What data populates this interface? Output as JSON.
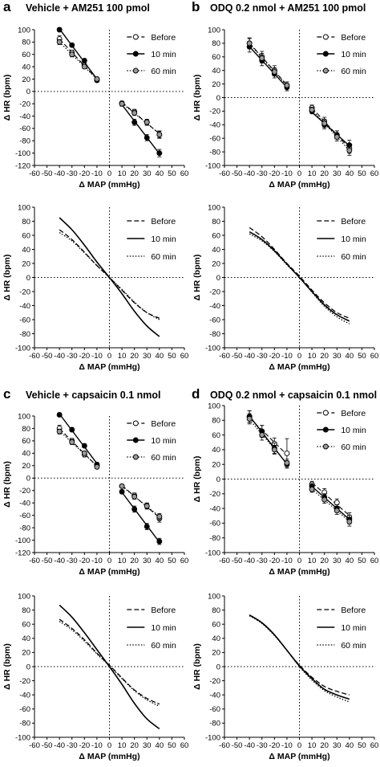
{
  "chart_data": [
    {
      "id": "a-top",
      "panel": "a",
      "title": "Vehicle + AM251 100 pmol",
      "type": "scatter",
      "xlabel": "Δ MAP (mmHg)",
      "ylabel": "Δ HR (bpm)",
      "xlim": [
        -60,
        60
      ],
      "ylim": [
        -120,
        100
      ],
      "xticks": [
        -60,
        -50,
        -40,
        -30,
        -20,
        -10,
        0,
        10,
        20,
        30,
        40,
        50,
        60
      ],
      "yticks": [
        -120,
        -100,
        -80,
        -60,
        -40,
        -20,
        0,
        20,
        40,
        60,
        80,
        100
      ],
      "legend": "top-right",
      "series": [
        {
          "name": "Before",
          "marker": "open",
          "line": "dash",
          "x": [
            -40,
            -30,
            -20,
            -10,
            10,
            20,
            30,
            40
          ],
          "y": [
            85,
            63,
            42,
            20,
            -19,
            -33,
            -50,
            -70
          ],
          "err": [
            5,
            4,
            4,
            3,
            3,
            4,
            5,
            5
          ]
        },
        {
          "name": "10 min",
          "marker": "filled",
          "line": "solid",
          "x": [
            -40,
            -30,
            -20,
            -10,
            10,
            20,
            30,
            40
          ],
          "y": [
            100,
            75,
            50,
            18,
            -20,
            -50,
            -75,
            -100
          ],
          "err": [
            3,
            3,
            3,
            3,
            4,
            5,
            5,
            6
          ]
        },
        {
          "name": "60 min",
          "marker": "gray",
          "line": "dot",
          "x": [
            -40,
            -30,
            -20,
            -10,
            10,
            20,
            30,
            40
          ],
          "y": [
            80,
            60,
            40,
            20,
            -20,
            -35,
            -50,
            -70
          ],
          "err": [
            4,
            4,
            3,
            3,
            3,
            4,
            4,
            6
          ]
        }
      ]
    },
    {
      "id": "b-top",
      "panel": "b",
      "title": "ODQ 0.2 nmol + AM251 100 pmol",
      "type": "scatter",
      "xlabel": "Δ MAP (mmHg)",
      "ylabel": "Δ HR (bpm)",
      "xlim": [
        -60,
        60
      ],
      "ylim": [
        -100,
        100
      ],
      "xticks": [
        -60,
        -50,
        -40,
        -30,
        -20,
        -10,
        0,
        10,
        20,
        30,
        40,
        50,
        60
      ],
      "yticks": [
        -100,
        -80,
        -60,
        -40,
        -20,
        0,
        20,
        40,
        60,
        80,
        100
      ],
      "legend": "top-right",
      "series": [
        {
          "name": "Before",
          "marker": "open",
          "line": "dash",
          "x": [
            -40,
            -30,
            -20,
            -10,
            10,
            20,
            30,
            40
          ],
          "y": [
            80,
            60,
            40,
            18,
            -15,
            -35,
            -55,
            -75
          ],
          "err": [
            8,
            8,
            7,
            5,
            4,
            6,
            6,
            7
          ]
        },
        {
          "name": "10 min",
          "marker": "filled",
          "line": "solid",
          "x": [
            -40,
            -30,
            -20,
            -10,
            10,
            20,
            30,
            40
          ],
          "y": [
            75,
            55,
            35,
            15,
            -20,
            -40,
            -55,
            -70
          ],
          "err": [
            8,
            8,
            6,
            5,
            4,
            6,
            6,
            7
          ]
        },
        {
          "name": "60 min",
          "marker": "gray",
          "line": "dot",
          "x": [
            -40,
            -30,
            -20,
            -10,
            10,
            20,
            30,
            40
          ],
          "y": [
            80,
            58,
            38,
            18,
            -18,
            -38,
            -58,
            -78
          ],
          "err": [
            7,
            7,
            6,
            5,
            4,
            6,
            6,
            7
          ]
        }
      ]
    },
    {
      "id": "a-bottom",
      "panel": "a",
      "type": "line",
      "xlabel": "Δ MAP (mmHg)",
      "ylabel": "Δ HR (bpm)",
      "xlim": [
        -60,
        60
      ],
      "ylim": [
        -100,
        100
      ],
      "xticks": [
        -60,
        -50,
        -40,
        -30,
        -20,
        -10,
        0,
        10,
        20,
        30,
        40,
        50,
        60
      ],
      "yticks": [
        -100,
        -80,
        -60,
        -40,
        -20,
        0,
        20,
        40,
        60,
        80,
        100
      ],
      "legend": "top-right",
      "curve_range": [
        -40,
        40
      ],
      "series": [
        {
          "name": "Before",
          "line": "dash",
          "x": [
            -40,
            -30,
            -20,
            -10,
            0,
            10,
            20,
            30,
            40
          ],
          "y": [
            68,
            54,
            36,
            17,
            0,
            -18,
            -36,
            -50,
            -58
          ]
        },
        {
          "name": "10 min",
          "line": "solid",
          "x": [
            -40,
            -30,
            -20,
            -10,
            0,
            10,
            20,
            30,
            40
          ],
          "y": [
            85,
            68,
            46,
            22,
            0,
            -23,
            -48,
            -69,
            -84
          ]
        },
        {
          "name": "60 min",
          "line": "dot",
          "x": [
            -40,
            -30,
            -20,
            -10,
            0,
            10,
            20,
            30,
            40
          ],
          "y": [
            64,
            52,
            35,
            17,
            0,
            -17,
            -35,
            -50,
            -60
          ]
        }
      ]
    },
    {
      "id": "b-bottom",
      "panel": "b",
      "type": "line",
      "xlabel": "Δ MAP (mmHg)",
      "ylabel": "Δ HR (bpm)",
      "xlim": [
        -60,
        60
      ],
      "ylim": [
        -100,
        100
      ],
      "xticks": [
        -60,
        -50,
        -40,
        -30,
        -20,
        -10,
        0,
        10,
        20,
        30,
        40,
        50,
        60
      ],
      "yticks": [
        -100,
        -80,
        -60,
        -40,
        -20,
        0,
        20,
        40,
        60,
        80,
        100
      ],
      "legend": "top-right",
      "curve_range": [
        -40,
        40
      ],
      "series": [
        {
          "name": "Before",
          "line": "dash",
          "x": [
            -40,
            -30,
            -20,
            -10,
            0,
            10,
            20,
            30,
            40
          ],
          "y": [
            71,
            58,
            40,
            20,
            2,
            -18,
            -36,
            -50,
            -58
          ]
        },
        {
          "name": "10 min",
          "line": "solid",
          "x": [
            -40,
            -30,
            -20,
            -10,
            0,
            10,
            20,
            30,
            40
          ],
          "y": [
            65,
            54,
            38,
            19,
            0,
            -20,
            -39,
            -53,
            -62
          ]
        },
        {
          "name": "60 min",
          "line": "dot",
          "x": [
            -40,
            -30,
            -20,
            -10,
            0,
            10,
            20,
            30,
            40
          ],
          "y": [
            62,
            52,
            37,
            18,
            0,
            -21,
            -41,
            -56,
            -66
          ]
        }
      ]
    },
    {
      "id": "c-top",
      "panel": "c",
      "title": "Vehicle + capsaicin 0.1 nmol",
      "type": "scatter",
      "xlabel": "Δ MAP (mmHg)",
      "ylabel": "Δ HR (bpm)",
      "xlim": [
        -60,
        60
      ],
      "ylim": [
        -120,
        100
      ],
      "xticks": [
        -60,
        -50,
        -40,
        -30,
        -20,
        -10,
        0,
        10,
        20,
        30,
        40,
        50,
        60
      ],
      "yticks": [
        -120,
        -100,
        -80,
        -60,
        -40,
        -20,
        0,
        20,
        40,
        60,
        80,
        100
      ],
      "legend": "top-right",
      "series": [
        {
          "name": "Before",
          "marker": "open",
          "line": "dash",
          "x": [
            -40,
            -30,
            -20,
            -10,
            10,
            20,
            30,
            40
          ],
          "y": [
            80,
            60,
            38,
            20,
            -13,
            -28,
            -45,
            -65
          ],
          "err": [
            5,
            4,
            4,
            3,
            3,
            4,
            5,
            6
          ]
        },
        {
          "name": "10 min",
          "marker": "filled",
          "line": "solid",
          "x": [
            -40,
            -30,
            -20,
            -10,
            10,
            20,
            30,
            40
          ],
          "y": [
            102,
            78,
            52,
            22,
            -22,
            -50,
            -78,
            -102
          ],
          "err": [
            3,
            3,
            3,
            3,
            3,
            5,
            5,
            5
          ]
        },
        {
          "name": "60 min",
          "marker": "gray",
          "line": "dot",
          "x": [
            -40,
            -30,
            -20,
            -10,
            10,
            20,
            30,
            40
          ],
          "y": [
            75,
            58,
            40,
            18,
            -13,
            -30,
            -45,
            -62
          ],
          "err": [
            4,
            4,
            3,
            3,
            3,
            4,
            4,
            5
          ]
        }
      ]
    },
    {
      "id": "d-top",
      "panel": "d",
      "title": "ODQ 0.2 nmol + capsaicin 0.1 nmol",
      "type": "scatter",
      "xlabel": "Δ MAP (mmHg)",
      "ylabel": "Δ HR (bpm)",
      "xlim": [
        -60,
        60
      ],
      "ylim": [
        -100,
        100
      ],
      "xticks": [
        -60,
        -50,
        -40,
        -30,
        -20,
        -10,
        0,
        10,
        20,
        30,
        40,
        50,
        60
      ],
      "yticks": [
        -100,
        -80,
        -60,
        -40,
        -20,
        0,
        20,
        40,
        60,
        80,
        100
      ],
      "legend": "top-right",
      "series": [
        {
          "name": "Before",
          "marker": "open",
          "line": "dash",
          "x": [
            -40,
            -30,
            -20,
            -10,
            10,
            20,
            30,
            40
          ],
          "y": [
            85,
            65,
            48,
            35,
            -7,
            -18,
            -32,
            -52
          ],
          "err": [
            8,
            8,
            8,
            20,
            4,
            5,
            5,
            6
          ]
        },
        {
          "name": "10 min",
          "marker": "filled",
          "line": "solid",
          "x": [
            -40,
            -30,
            -20,
            -10,
            10,
            20,
            30,
            40
          ],
          "y": [
            85,
            65,
            42,
            20,
            -10,
            -25,
            -40,
            -55
          ],
          "err": [
            8,
            8,
            7,
            5,
            4,
            5,
            5,
            6
          ]
        },
        {
          "name": "60 min",
          "marker": "gray",
          "line": "dot",
          "x": [
            -40,
            -30,
            -20,
            -10,
            10,
            20,
            30,
            40
          ],
          "y": [
            82,
            60,
            40,
            22,
            -14,
            -28,
            -43,
            -58
          ],
          "err": [
            7,
            7,
            6,
            5,
            4,
            5,
            5,
            6
          ]
        }
      ]
    },
    {
      "id": "c-bottom",
      "panel": "c",
      "type": "line",
      "xlabel": "Δ MAP (mmHg)",
      "ylabel": "Δ HR (bpm)",
      "xlim": [
        -60,
        60
      ],
      "ylim": [
        -100,
        100
      ],
      "xticks": [
        -60,
        -50,
        -40,
        -30,
        -20,
        -10,
        0,
        10,
        20,
        30,
        40,
        50,
        60
      ],
      "yticks": [
        -100,
        -80,
        -60,
        -40,
        -20,
        0,
        20,
        40,
        60,
        80,
        100
      ],
      "legend": "top-right",
      "curve_range": [
        -40,
        40
      ],
      "series": [
        {
          "name": "Before",
          "line": "dash",
          "x": [
            -40,
            -30,
            -20,
            -10,
            0,
            10,
            20,
            30,
            40
          ],
          "y": [
            67,
            54,
            38,
            19,
            2,
            -16,
            -33,
            -45,
            -53
          ]
        },
        {
          "name": "10 min",
          "line": "solid",
          "x": [
            -40,
            -30,
            -20,
            -10,
            0,
            10,
            20,
            30,
            40
          ],
          "y": [
            87,
            70,
            48,
            24,
            0,
            -25,
            -52,
            -74,
            -88
          ]
        },
        {
          "name": "60 min",
          "line": "dot",
          "x": [
            -40,
            -30,
            -20,
            -10,
            0,
            10,
            20,
            30,
            40
          ],
          "y": [
            64,
            52,
            36,
            18,
            1,
            -17,
            -34,
            -47,
            -56
          ]
        }
      ]
    },
    {
      "id": "d-bottom",
      "panel": "d",
      "type": "line",
      "xlabel": "Δ MAP (mmHg)",
      "ylabel": "Δ HR (bpm)",
      "xlim": [
        -60,
        60
      ],
      "ylim": [
        -100,
        100
      ],
      "xticks": [
        -60,
        -50,
        -40,
        -30,
        -20,
        -10,
        0,
        10,
        20,
        30,
        40,
        50,
        60
      ],
      "yticks": [
        -100,
        -80,
        -60,
        -40,
        -20,
        0,
        20,
        40,
        60,
        80,
        100
      ],
      "legend": "top-right",
      "curve_range": [
        -40,
        40
      ],
      "series": [
        {
          "name": "Before",
          "line": "dash",
          "x": [
            -40,
            -30,
            -20,
            -10,
            0,
            10,
            20,
            30,
            40
          ],
          "y": [
            73,
            62,
            45,
            23,
            2,
            -15,
            -28,
            -35,
            -40
          ]
        },
        {
          "name": "10 min",
          "line": "solid",
          "x": [
            -40,
            -30,
            -20,
            -10,
            0,
            10,
            20,
            30,
            40
          ],
          "y": [
            73,
            62,
            45,
            23,
            1,
            -17,
            -32,
            -40,
            -46
          ]
        },
        {
          "name": "60 min",
          "line": "dot",
          "x": [
            -40,
            -30,
            -20,
            -10,
            0,
            10,
            20,
            30,
            40
          ],
          "y": [
            72,
            61,
            44,
            23,
            0,
            -19,
            -34,
            -43,
            -50
          ]
        }
      ]
    }
  ]
}
